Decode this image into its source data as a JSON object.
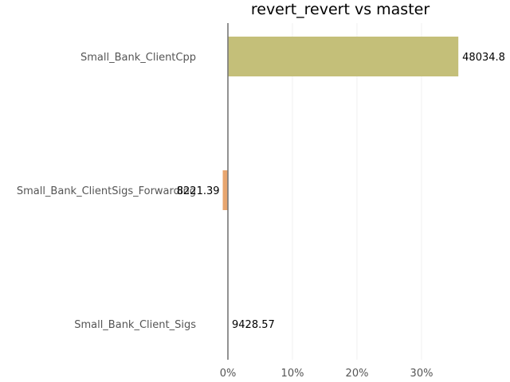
{
  "chart_data": {
    "type": "bar",
    "orientation": "horizontal",
    "title": "revert_revert vs master",
    "xlabel": "",
    "ylabel": "",
    "categories": [
      "Small_Bank_ClientCpp",
      "Small_Bank_ClientSigs_Forwarding",
      "Small_Bank_Client_Sigs"
    ],
    "values": [
      35.7,
      -0.8,
      0.0
    ],
    "data_labels": [
      "48034.8",
      "8221.39",
      "9428.57"
    ],
    "bar_colors": [
      "#c4bf79",
      "#e8a66f",
      "#9a9ad0"
    ],
    "xlim": [
      -10,
      43
    ],
    "xticks": [
      0,
      10,
      20,
      30
    ],
    "xtick_labels": [
      "0%",
      "10%",
      "20%",
      "30%"
    ],
    "grid": true,
    "legend": "none"
  }
}
